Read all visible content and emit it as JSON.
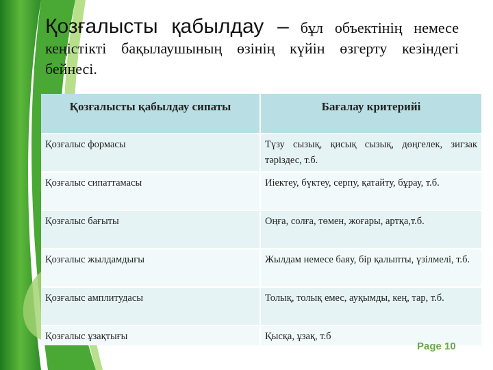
{
  "title": {
    "bold_part": "Қозғалысты қабылдау –",
    "rest": " бұл объектінің немесе кеңістікті бақылаушының өзінің күйін өзгерту кезіндегі бейнесі."
  },
  "table": {
    "headers": [
      "Қозғалысты қабылдау сипаты",
      "Бағалау критерийі"
    ],
    "rows": [
      [
        "Қозғалыс формасы",
        "Түзу сызық, қисық сызық, дөңгелек, зигзак тәріздес, т.б."
      ],
      [
        "Қозғалыс сипаттамасы",
        "Иіектеу, бүктеу, серпу, қатайту, бұрау, т.б."
      ],
      [
        "Қозғалыс бағыты",
        "Оңға, солға, төмен, жоғары, артқа,т.б."
      ],
      [
        "Қозғалыс жылдамдығы",
        "Жылдам немесе баяу, бір қалыпты, үзілмелі, т.б."
      ],
      [
        "Қозғалыс амплитудасы",
        "Толық, толық емес, ауқымды, кең, тар, т.б."
      ],
      [
        "Қозғалыс ұзақтығы",
        "Қысқа, ұзақ, т.б"
      ]
    ]
  },
  "footer": {
    "page": "Page 10"
  },
  "colors": {
    "header_bg": "#b9dfe4",
    "accent": "#6aa84f",
    "leaf_green": "#3a9a2c"
  }
}
